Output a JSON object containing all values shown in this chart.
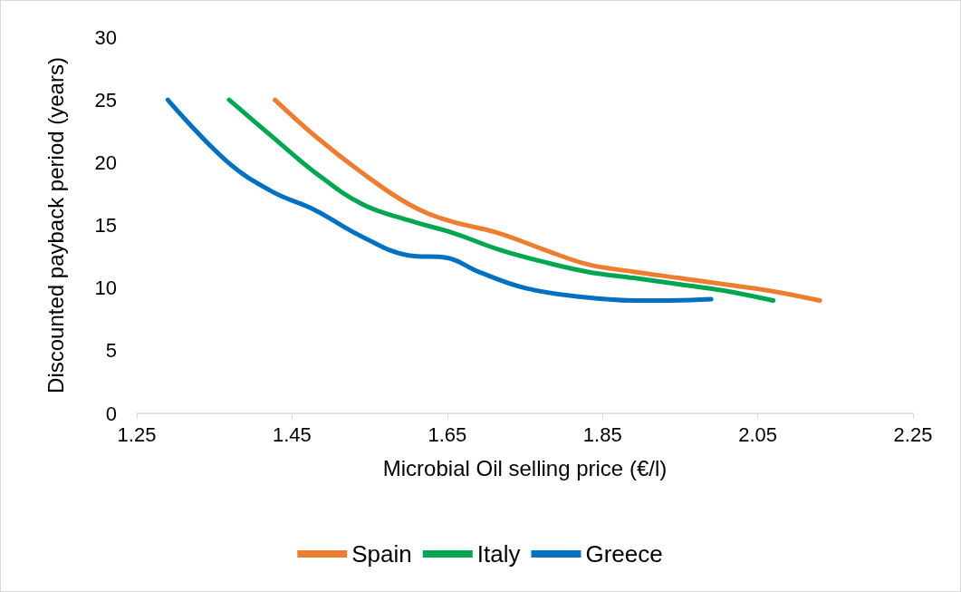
{
  "chart_data": {
    "type": "line",
    "xlabel": "Microbial Oil selling price (€/l)",
    "ylabel": "Discounted payback period (years)",
    "xlim": [
      1.25,
      2.25
    ],
    "xticks": [
      1.25,
      1.45,
      1.65,
      1.85,
      2.05,
      2.25
    ],
    "ylim": [
      0,
      30
    ],
    "yticks": [
      0,
      5,
      10,
      15,
      20,
      25,
      30
    ],
    "grid": false,
    "legend": "bottom",
    "marker": "none",
    "line_style": "solid",
    "series": [
      {
        "name": "Spain",
        "color": "#ed7d31",
        "x": [
          1.428,
          1.48,
          1.54,
          1.6,
          1.65,
          1.715,
          1.773,
          1.83,
          1.89,
          1.948,
          2.006,
          2.064,
          2.13
        ],
        "values": [
          25,
          22.1,
          19.2,
          16.7,
          15.4,
          14.4,
          13.1,
          11.9,
          11.3,
          10.8,
          10.3,
          9.8,
          9
        ]
      },
      {
        "name": "Italy",
        "color": "#00a650",
        "x": [
          1.369,
          1.424,
          1.48,
          1.54,
          1.6,
          1.657,
          1.715,
          1.773,
          1.83,
          1.89,
          1.948,
          2.006,
          2.07
        ],
        "values": [
          25,
          22.1,
          19.2,
          16.7,
          15.4,
          14.4,
          13.1,
          12.1,
          11.3,
          10.8,
          10.3,
          9.8,
          9
        ]
      },
      {
        "name": "Greece",
        "color": "#0070c0",
        "x": [
          1.29,
          1.366,
          1.424,
          1.48,
          1.54,
          1.6,
          1.65,
          1.69,
          1.75,
          1.82,
          1.89,
          1.936,
          1.99
        ],
        "values": [
          25,
          20.1,
          17.7,
          16.2,
          14.1,
          12.6,
          12.4,
          11.3,
          10,
          9.3,
          9,
          9,
          9.1
        ]
      }
    ]
  }
}
